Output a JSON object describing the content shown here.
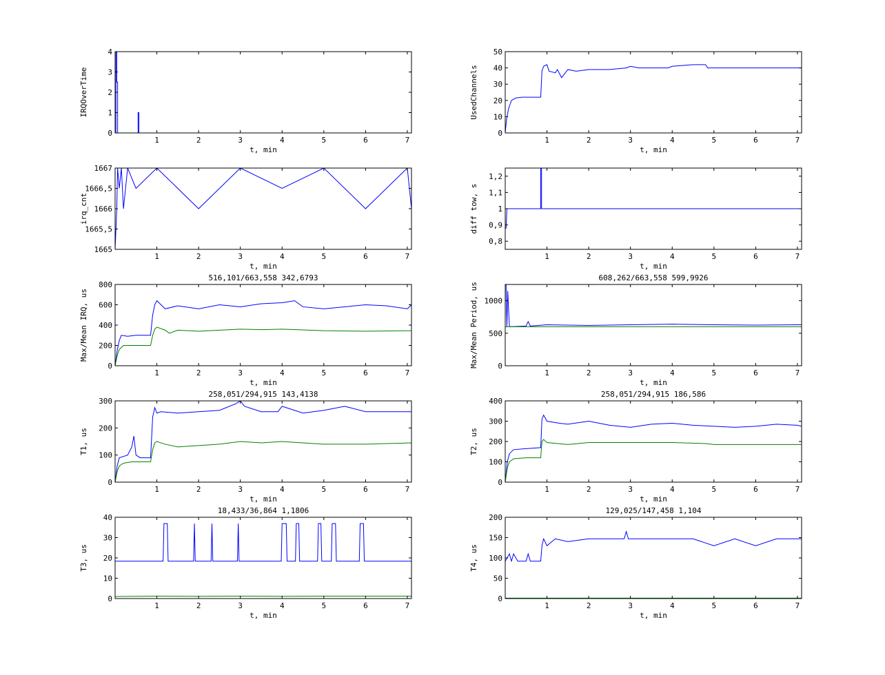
{
  "colors": {
    "series1": "#0000ff",
    "series2": "#008000",
    "axes": "#000000",
    "background": "#ffffff"
  },
  "chart_data": [
    {
      "id": "irq-overtime",
      "type": "line",
      "title": "",
      "xlabel": "t, min",
      "ylabel": "IRQOverTime",
      "xlim": [
        0,
        7.1
      ],
      "ylim": [
        0,
        4
      ],
      "xticks": [
        1,
        2,
        3,
        4,
        5,
        6,
        7
      ],
      "xtick_labels": [
        "1",
        "2",
        "3",
        "4",
        "5",
        "6",
        "7"
      ],
      "yticks": [
        0,
        1,
        2,
        3,
        4
      ],
      "ytick_labels": [
        "0",
        "1",
        "2",
        "3",
        "4"
      ],
      "grid": false,
      "legend": null,
      "series": [
        {
          "color": "#0000ff",
          "x": [
            0,
            0.02,
            0.02,
            0.04,
            0.04,
            0.06,
            0.06,
            0.55,
            0.55,
            0.57,
            0.57,
            7.1
          ],
          "y": [
            0,
            0,
            4,
            4,
            2.5,
            2.5,
            0,
            0,
            1,
            1,
            0,
            0
          ]
        }
      ]
    },
    {
      "id": "used-channels",
      "type": "line",
      "title": "",
      "xlabel": "t, min",
      "ylabel": "UsedChannels",
      "xlim": [
        0,
        7.1
      ],
      "ylim": [
        0,
        50
      ],
      "xticks": [
        1,
        2,
        3,
        4,
        5,
        6,
        7
      ],
      "xtick_labels": [
        "1",
        "2",
        "3",
        "4",
        "5",
        "6",
        "7"
      ],
      "yticks": [
        0,
        10,
        20,
        30,
        40,
        50
      ],
      "ytick_labels": [
        "0",
        "10",
        "20",
        "30",
        "40",
        "50"
      ],
      "grid": false,
      "legend": null,
      "series": [
        {
          "color": "#0000ff",
          "x": [
            0,
            0.03,
            0.08,
            0.15,
            0.25,
            0.4,
            0.85,
            0.88,
            0.92,
            1.0,
            1.05,
            1.2,
            1.25,
            1.35,
            1.5,
            1.7,
            2.0,
            2.5,
            2.9,
            3.0,
            3.2,
            3.5,
            3.9,
            4.0,
            4.5,
            4.8,
            4.85,
            5.5,
            6.0,
            7.1
          ],
          "y": [
            0,
            8,
            15,
            20,
            21.5,
            22,
            22,
            38,
            41,
            42,
            38,
            37,
            39,
            34,
            39,
            38,
            39,
            39,
            40,
            41,
            40,
            40,
            40,
            41,
            42,
            42,
            40,
            40,
            40,
            40
          ]
        }
      ]
    },
    {
      "id": "irq-cnt",
      "type": "line",
      "title": "",
      "xlabel": "t, min",
      "ylabel": "irq_cnt",
      "xlim": [
        0,
        7.1
      ],
      "ylim": [
        1665,
        1667
      ],
      "xticks": [
        1,
        2,
        3,
        4,
        5,
        6,
        7
      ],
      "xtick_labels": [
        "1",
        "2",
        "3",
        "4",
        "5",
        "6",
        "7"
      ],
      "yticks": [
        1665,
        1665.5,
        1666,
        1666.5,
        1667
      ],
      "ytick_labels": [
        "1665",
        "1665,5",
        "1666",
        "1666,5",
        "1667"
      ],
      "grid": false,
      "legend": null,
      "series": [
        {
          "color": "#0000ff",
          "x": [
            0,
            0.02,
            0.04,
            0.06,
            0.1,
            0.15,
            0.2,
            0.3,
            0.5,
            1,
            2,
            3,
            4,
            5,
            6,
            7,
            7.1
          ],
          "y": [
            1665,
            1665.5,
            1666,
            1667,
            1666.5,
            1667,
            1666,
            1667,
            1666.5,
            1667,
            1666,
            1667,
            1666.5,
            1667,
            1666,
            1667,
            1666
          ]
        }
      ]
    },
    {
      "id": "diff-tow",
      "type": "line",
      "title": "",
      "xlabel": "t, min",
      "ylabel": "diff tow, s",
      "xlim": [
        0,
        7.1
      ],
      "ylim": [
        0.75,
        1.25
      ],
      "xticks": [
        1,
        2,
        3,
        4,
        5,
        6,
        7
      ],
      "xtick_labels": [
        "1",
        "2",
        "3",
        "4",
        "5",
        "6",
        "7"
      ],
      "yticks": [
        0.8,
        0.9,
        1,
        1.1,
        1.2
      ],
      "ytick_labels": [
        "0,8",
        "0,9",
        "1",
        "1,1",
        "1,2"
      ],
      "grid": false,
      "legend": null,
      "series": [
        {
          "color": "#0000ff",
          "x": [
            0,
            0.02,
            0.04,
            0.85,
            0.85,
            0.87,
            0.87,
            7.1
          ],
          "y": [
            0.88,
            0.88,
            1,
            1,
            1.25,
            1.25,
            1,
            1
          ]
        }
      ]
    },
    {
      "id": "max-mean-irq",
      "type": "line",
      "title": "516,101/663,558  342,6793",
      "xlabel": "t, min",
      "ylabel": "Max/Mean IRQ, us",
      "xlim": [
        0,
        7.1
      ],
      "ylim": [
        0,
        800
      ],
      "xticks": [
        1,
        2,
        3,
        4,
        5,
        6,
        7
      ],
      "xtick_labels": [
        "1",
        "2",
        "3",
        "4",
        "5",
        "6",
        "7"
      ],
      "yticks": [
        0,
        200,
        400,
        600,
        800
      ],
      "ytick_labels": [
        "0",
        "200",
        "400",
        "600",
        "800"
      ],
      "grid": false,
      "legend": null,
      "series": [
        {
          "color": "#0000ff",
          "x": [
            0,
            0.05,
            0.1,
            0.15,
            0.3,
            0.5,
            0.85,
            0.9,
            0.95,
            1.0,
            1.2,
            1.5,
            2.0,
            2.5,
            3.0,
            3.5,
            4.0,
            4.3,
            4.5,
            5.0,
            5.5,
            6.0,
            6.5,
            7.0,
            7.1
          ],
          "y": [
            0,
            150,
            250,
            300,
            290,
            300,
            300,
            500,
            600,
            640,
            560,
            590,
            560,
            600,
            580,
            610,
            620,
            640,
            580,
            560,
            580,
            600,
            590,
            560,
            600
          ]
        },
        {
          "color": "#008000",
          "x": [
            0,
            0.05,
            0.1,
            0.2,
            0.4,
            0.85,
            0.9,
            0.95,
            1.0,
            1.2,
            1.3,
            1.5,
            2.0,
            2.5,
            3.0,
            3.5,
            4.0,
            5.0,
            6.0,
            7.1
          ],
          "y": [
            0,
            100,
            160,
            200,
            200,
            200,
            300,
            360,
            380,
            350,
            320,
            350,
            340,
            350,
            360,
            355,
            360,
            345,
            340,
            345
          ]
        }
      ]
    },
    {
      "id": "max-mean-period",
      "type": "line",
      "title": "608,262/663,558  599,9926",
      "xlabel": "t, min",
      "ylabel": "Max/Mean Period, us",
      "xlim": [
        0,
        7.1
      ],
      "ylim": [
        0,
        1250
      ],
      "xticks": [
        1,
        2,
        3,
        4,
        5,
        6,
        7
      ],
      "xtick_labels": [
        "1",
        "2",
        "3",
        "4",
        "5",
        "6",
        "7"
      ],
      "yticks": [
        0,
        500,
        1000
      ],
      "ytick_labels": [
        "0",
        "500",
        "1000"
      ],
      "grid": false,
      "legend": null,
      "series": [
        {
          "color": "#0000ff",
          "x": [
            0,
            0.02,
            0.04,
            0.06,
            0.1,
            0.5,
            0.55,
            0.6,
            1.0,
            2.0,
            3.0,
            4.0,
            5.0,
            6.0,
            7.1
          ],
          "y": [
            1250,
            1250,
            600,
            1150,
            600,
            610,
            680,
            610,
            630,
            620,
            630,
            640,
            630,
            625,
            630
          ]
        },
        {
          "color": "#008000",
          "x": [
            0,
            7.1
          ],
          "y": [
            600,
            600
          ]
        }
      ]
    },
    {
      "id": "t1",
      "type": "line",
      "title": "258,051/294,915  143,4138",
      "xlabel": "t, min",
      "ylabel": "T1, us",
      "xlim": [
        0,
        7.1
      ],
      "ylim": [
        0,
        300
      ],
      "xticks": [
        1,
        2,
        3,
        4,
        5,
        6,
        7
      ],
      "xtick_labels": [
        "1",
        "2",
        "3",
        "4",
        "5",
        "6",
        "7"
      ],
      "yticks": [
        0,
        100,
        200,
        300
      ],
      "ytick_labels": [
        "0",
        "100",
        "200",
        "300"
      ],
      "grid": false,
      "legend": null,
      "series": [
        {
          "color": "#0000ff",
          "x": [
            0,
            0.05,
            0.1,
            0.3,
            0.4,
            0.45,
            0.5,
            0.6,
            0.85,
            0.9,
            0.95,
            1.0,
            1.1,
            1.5,
            2.0,
            2.5,
            2.9,
            3.0,
            3.1,
            3.5,
            3.9,
            4.0,
            4.5,
            5.0,
            5.5,
            6.0,
            6.5,
            7.1
          ],
          "y": [
            0,
            60,
            90,
            100,
            130,
            170,
            100,
            90,
            90,
            240,
            275,
            255,
            260,
            255,
            260,
            265,
            290,
            300,
            280,
            260,
            260,
            280,
            255,
            265,
            280,
            260,
            260,
            260
          ]
        },
        {
          "color": "#008000",
          "x": [
            0,
            0.05,
            0.1,
            0.2,
            0.4,
            0.85,
            0.9,
            0.95,
            1.0,
            1.2,
            1.5,
            2.0,
            2.5,
            3.0,
            3.5,
            4.0,
            4.5,
            5.0,
            6.0,
            7.1
          ],
          "y": [
            0,
            40,
            60,
            70,
            75,
            75,
            120,
            145,
            150,
            140,
            130,
            135,
            140,
            150,
            145,
            150,
            145,
            140,
            140,
            145
          ]
        }
      ]
    },
    {
      "id": "t2",
      "type": "line",
      "title": "258,051/294,915  186,586",
      "xlabel": "t, min",
      "ylabel": "T2, us",
      "xlim": [
        0,
        7.1
      ],
      "ylim": [
        0,
        400
      ],
      "xticks": [
        1,
        2,
        3,
        4,
        5,
        6,
        7
      ],
      "xtick_labels": [
        "1",
        "2",
        "3",
        "4",
        "5",
        "6",
        "7"
      ],
      "yticks": [
        0,
        100,
        200,
        300,
        400
      ],
      "ytick_labels": [
        "0",
        "100",
        "200",
        "300",
        "400"
      ],
      "grid": false,
      "legend": null,
      "series": [
        {
          "color": "#0000ff",
          "x": [
            0,
            0.05,
            0.1,
            0.2,
            0.5,
            0.85,
            0.88,
            0.92,
            1.0,
            1.3,
            1.5,
            2.0,
            2.5,
            3.0,
            3.5,
            4.0,
            4.5,
            5.0,
            5.5,
            6.0,
            6.5,
            7.0,
            7.1
          ],
          "y": [
            0,
            100,
            140,
            160,
            165,
            170,
            310,
            330,
            300,
            290,
            285,
            300,
            280,
            270,
            285,
            290,
            280,
            275,
            270,
            275,
            285,
            280,
            275
          ]
        },
        {
          "color": "#008000",
          "x": [
            0,
            0.05,
            0.1,
            0.2,
            0.5,
            0.85,
            0.88,
            0.92,
            1.0,
            1.5,
            2.0,
            3.0,
            4.0,
            4.8,
            5.0,
            6.0,
            7.1
          ],
          "y": [
            0,
            70,
            100,
            115,
            120,
            120,
            200,
            210,
            195,
            185,
            195,
            195,
            195,
            190,
            185,
            185,
            185
          ]
        }
      ]
    },
    {
      "id": "t3",
      "type": "line",
      "title": "18,433/36,864  1,1806",
      "xlabel": "t, min",
      "ylabel": "T3, us",
      "xlim": [
        0,
        7.1
      ],
      "ylim": [
        0,
        40
      ],
      "xticks": [
        1,
        2,
        3,
        4,
        5,
        6,
        7
      ],
      "xtick_labels": [
        "1",
        "2",
        "3",
        "4",
        "5",
        "6",
        "7"
      ],
      "yticks": [
        0,
        10,
        20,
        30,
        40
      ],
      "ytick_labels": [
        "0",
        "10",
        "20",
        "30",
        "40"
      ],
      "grid": false,
      "legend": null,
      "series": [
        {
          "color": "#0000ff",
          "x": [
            0,
            1.15,
            1.17,
            1.25,
            1.27,
            1.88,
            1.9,
            1.92,
            2.3,
            2.32,
            2.34,
            2.93,
            2.95,
            2.97,
            3.98,
            4.0,
            4.1,
            4.12,
            4.32,
            4.34,
            4.4,
            4.42,
            4.85,
            4.87,
            4.93,
            4.95,
            5.18,
            5.2,
            5.28,
            5.3,
            5.85,
            5.87,
            5.95,
            5.97,
            7.1
          ],
          "y": [
            18.4,
            18.4,
            36.9,
            36.9,
            18.4,
            18.4,
            36.9,
            18.4,
            18.4,
            36.9,
            18.4,
            18.4,
            36.9,
            18.4,
            18.4,
            36.9,
            36.9,
            18.4,
            18.4,
            36.9,
            36.9,
            18.4,
            18.4,
            36.9,
            36.9,
            18.4,
            18.4,
            36.9,
            36.9,
            18.4,
            18.4,
            36.9,
            36.9,
            18.4,
            18.4
          ]
        },
        {
          "color": "#008000",
          "x": [
            0,
            1,
            2,
            3,
            4,
            5,
            6,
            7.1
          ],
          "y": [
            1.0,
            1.2,
            1.1,
            1.2,
            1.1,
            1.2,
            1.2,
            1.2
          ]
        }
      ]
    },
    {
      "id": "t4",
      "type": "line",
      "title": "129,025/147,458  1,104",
      "xlabel": "t, min",
      "ylabel": "T4, us",
      "xlim": [
        0,
        7.1
      ],
      "ylim": [
        0,
        200
      ],
      "xticks": [
        1,
        2,
        3,
        4,
        5,
        6,
        7
      ],
      "xtick_labels": [
        "1",
        "2",
        "3",
        "4",
        "5",
        "6",
        "7"
      ],
      "yticks": [
        0,
        50,
        100,
        150,
        200
      ],
      "ytick_labels": [
        "0",
        "50",
        "100",
        "150",
        "200"
      ],
      "grid": false,
      "legend": null,
      "series": [
        {
          "color": "#0000ff",
          "x": [
            0,
            0.1,
            0.15,
            0.2,
            0.3,
            0.5,
            0.55,
            0.6,
            0.85,
            0.88,
            0.92,
            1.0,
            1.2,
            1.5,
            2.0,
            2.5,
            2.85,
            2.9,
            2.95,
            3.2,
            3.5,
            4.0,
            4.5,
            5.0,
            5.5,
            6.0,
            6.5,
            7.0,
            7.1
          ],
          "y": [
            92,
            110,
            92,
            110,
            92,
            92,
            110,
            92,
            92,
            130,
            147,
            130,
            147,
            140,
            147,
            147,
            147,
            165,
            147,
            147,
            147,
            147,
            147,
            130,
            147,
            130,
            147,
            147,
            147
          ]
        },
        {
          "color": "#008000",
          "x": [
            0,
            7.1
          ],
          "y": [
            1.1,
            1.1
          ]
        }
      ]
    }
  ]
}
